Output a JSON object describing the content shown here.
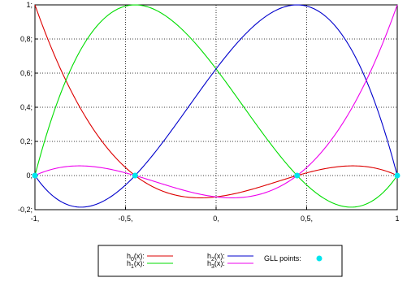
{
  "chart_data": {
    "type": "line",
    "title": "",
    "xlabel": "",
    "ylabel": "",
    "xlim": [
      -1,
      1
    ],
    "ylim": [
      -0.2,
      1
    ],
    "grid": true,
    "legend_position": "bottom-center",
    "x_ticks": [
      {
        "value": -1,
        "label": "-1,"
      },
      {
        "value": -0.5,
        "label": "-0,5,"
      },
      {
        "value": 0,
        "label": "0,"
      },
      {
        "value": 0.5,
        "label": "0,5,"
      },
      {
        "value": 1,
        "label": "1"
      }
    ],
    "y_ticks": [
      {
        "value": -0.2,
        "label": "-0,2;"
      },
      {
        "value": 0,
        "label": "0;"
      },
      {
        "value": 0.2,
        "label": "0,2;"
      },
      {
        "value": 0.4,
        "label": "0,4;"
      },
      {
        "value": 0.6,
        "label": "0,6;"
      },
      {
        "value": 0.8,
        "label": "0,8;"
      },
      {
        "value": 1,
        "label": "1;"
      }
    ],
    "gll_points": [
      -1,
      -0.4472,
      0.4472,
      1
    ],
    "series": [
      {
        "name": "h0(x)",
        "base": "h",
        "sub": "0",
        "suffix": "(x):",
        "color": "#dd0000",
        "node": 0
      },
      {
        "name": "h1(x)",
        "base": "h",
        "sub": "1",
        "suffix": "(x):",
        "color": "#00dd00",
        "node": 1
      },
      {
        "name": "h2(x)",
        "base": "h",
        "sub": "2",
        "suffix": "(x):",
        "color": "#0000cc",
        "node": 2
      },
      {
        "name": "h3(x)",
        "base": "h",
        "sub": "3",
        "suffix": "(x):",
        "color": "#ee00ee",
        "node": 3
      }
    ],
    "points_legend": {
      "label": "GLL points:",
      "color": "#00e5ee"
    }
  }
}
